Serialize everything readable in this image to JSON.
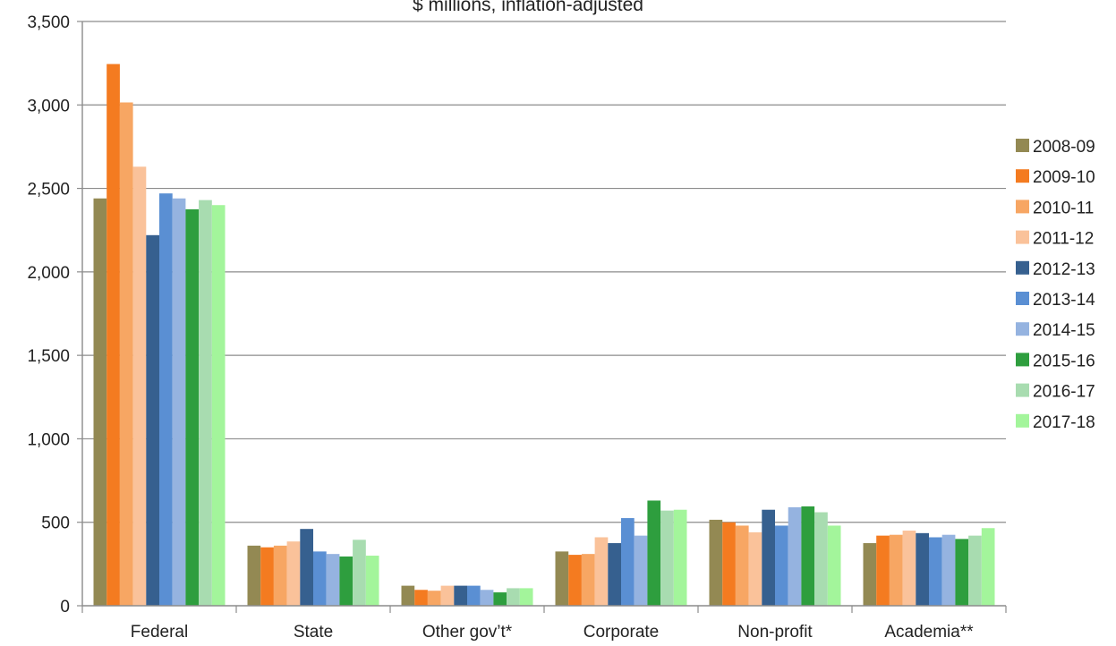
{
  "chart_data": {
    "type": "bar",
    "subtitle": "$ millions, inflation-adjusted",
    "categories": [
      "Federal",
      "State",
      "Other gov’t*",
      "Corporate",
      "Non-profit",
      "Academia**"
    ],
    "ylim": [
      0,
      3500
    ],
    "yticks": [
      "0",
      "500",
      "1,000",
      "1,500",
      "2,000",
      "2,500",
      "3,000",
      "3,500"
    ],
    "grid": true,
    "legend_position": "right",
    "series": [
      {
        "name": "2008-09",
        "color": "#938953",
        "values": [
          2440,
          360,
          120,
          325,
          515,
          375
        ]
      },
      {
        "name": "2009-10",
        "color": "#f47b20",
        "values": [
          3245,
          350,
          95,
          305,
          500,
          420
        ]
      },
      {
        "name": "2010-11",
        "color": "#f7a663",
        "values": [
          3015,
          360,
          90,
          310,
          480,
          425
        ]
      },
      {
        "name": "2011-12",
        "color": "#fac29a",
        "values": [
          2630,
          385,
          120,
          410,
          440,
          450
        ]
      },
      {
        "name": "2012-13",
        "color": "#36608f",
        "values": [
          2220,
          460,
          120,
          375,
          575,
          435
        ]
      },
      {
        "name": "2013-14",
        "color": "#5a8fd3",
        "values": [
          2470,
          325,
          120,
          525,
          480,
          410
        ]
      },
      {
        "name": "2014-15",
        "color": "#95b3e0",
        "values": [
          2440,
          310,
          95,
          420,
          590,
          425
        ]
      },
      {
        "name": "2015-16",
        "color": "#2e9e3e",
        "values": [
          2375,
          295,
          80,
          630,
          595,
          400
        ]
      },
      {
        "name": "2016-17",
        "color": "#a8dcb0",
        "values": [
          2430,
          395,
          105,
          570,
          560,
          420
        ]
      },
      {
        "name": "2017-18",
        "color": "#a3f59b",
        "values": [
          2400,
          300,
          105,
          575,
          480,
          465
        ]
      }
    ]
  }
}
